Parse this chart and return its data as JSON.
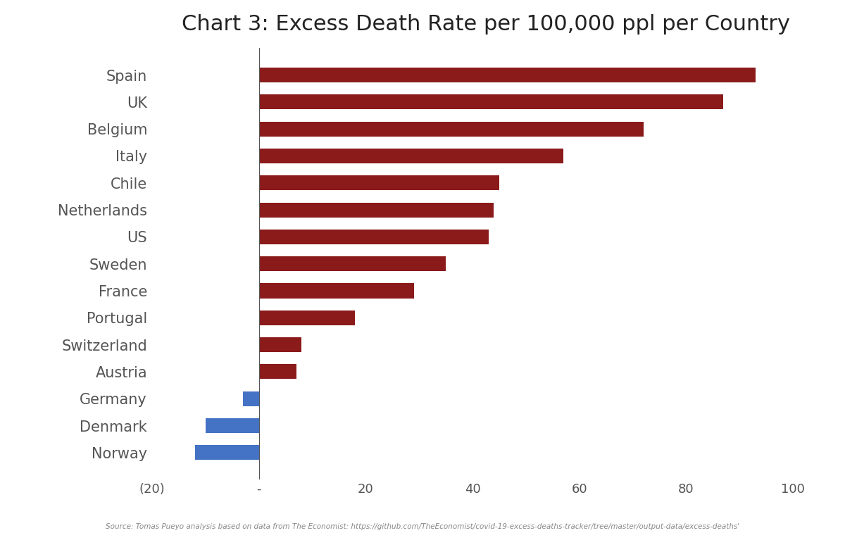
{
  "title": "Chart 3: Excess Death Rate per 100,000 ppl per Country",
  "countries": [
    "Spain",
    "UK",
    "Belgium",
    "Italy",
    "Chile",
    "Netherlands",
    "US",
    "Sweden",
    "France",
    "Portugal",
    "Switzerland",
    "Austria",
    "Germany",
    "Denmark",
    "Norway"
  ],
  "values": [
    93,
    87,
    72,
    57,
    45,
    44,
    43,
    35,
    29,
    18,
    8,
    7,
    -3,
    -10,
    -12
  ],
  "colors": [
    "#8B1A1A",
    "#8B1A1A",
    "#8B1A1A",
    "#8B1A1A",
    "#8B1A1A",
    "#8B1A1A",
    "#8B1A1A",
    "#8B1A1A",
    "#8B1A1A",
    "#8B1A1A",
    "#8B1A1A",
    "#8B1A1A",
    "#4472C4",
    "#4472C4",
    "#4472C4"
  ],
  "xlim": [
    -20,
    105
  ],
  "xticks": [
    -20,
    0,
    20,
    40,
    60,
    80,
    100
  ],
  "xticklabels": [
    "(20)",
    "-",
    "20",
    "40",
    "60",
    "80",
    "100"
  ],
  "source_text": "Source: Tomas Pueyo analysis based on data from The Economist: https://github.com/TheEconomist/covid-19-excess-deaths-tracker/tree/master/output-data/excess-deaths'",
  "background_color": "#FFFFFF",
  "bar_height": 0.55,
  "title_fontsize": 22,
  "label_fontsize": 15,
  "tick_fontsize": 13
}
